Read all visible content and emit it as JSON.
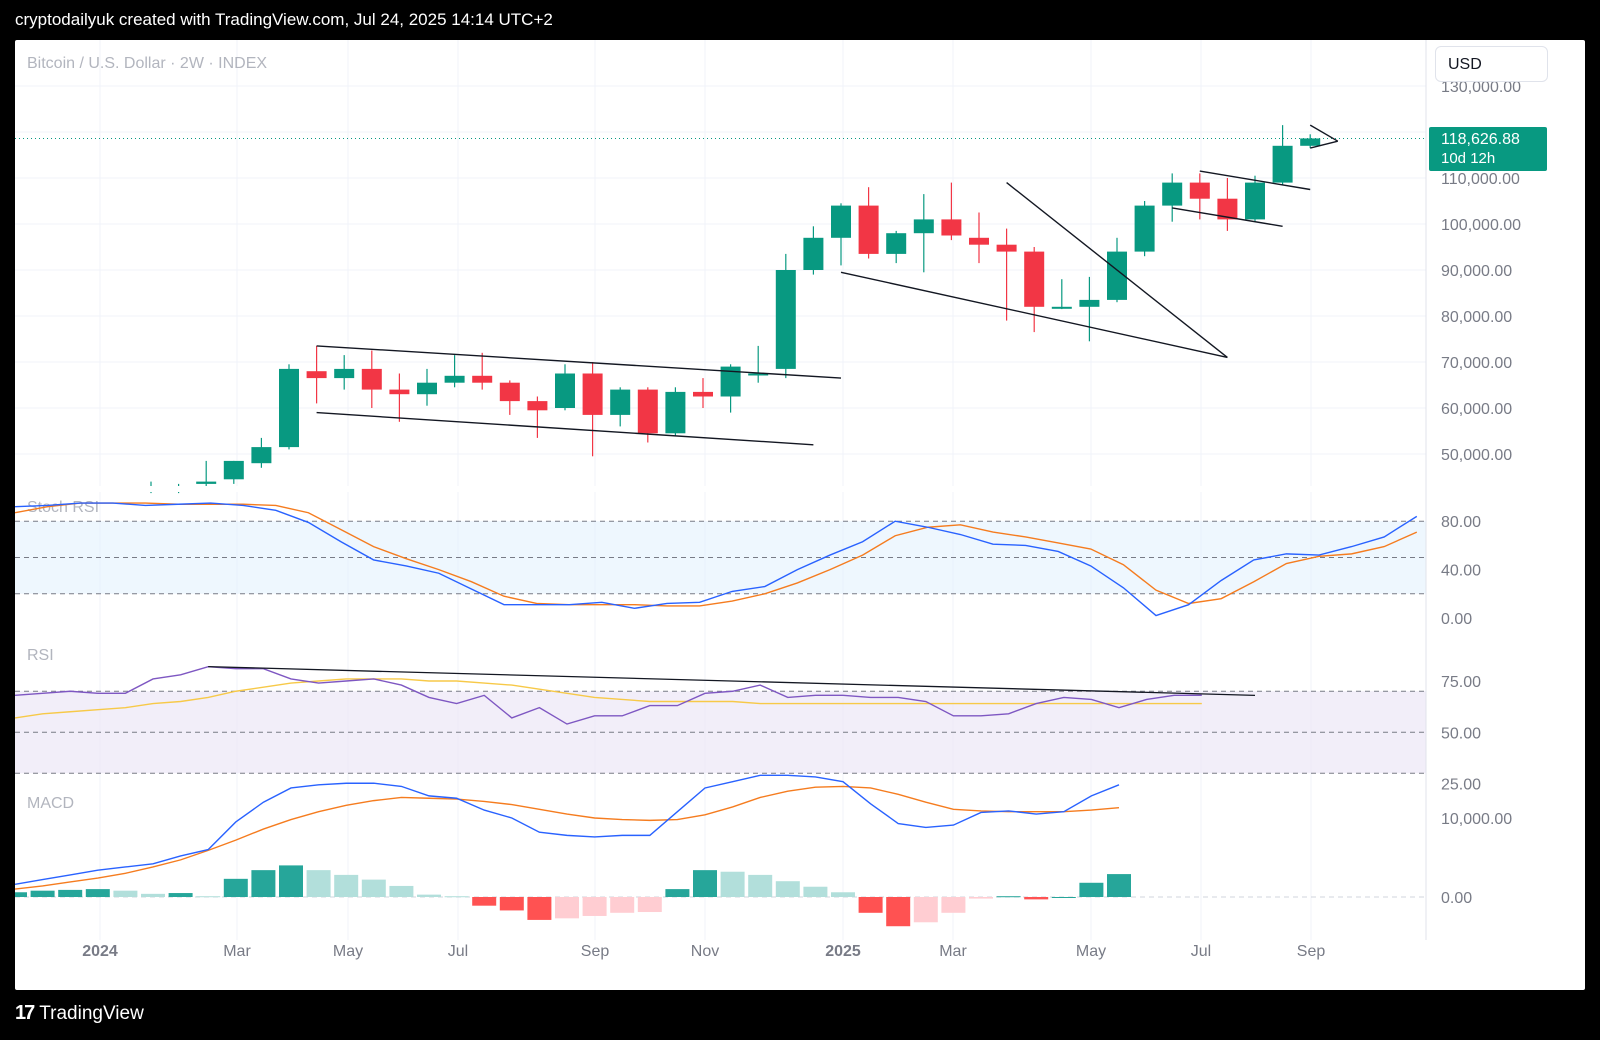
{
  "header": {
    "title": "cryptodailyuk created with TradingView.com, Jul 24, 2025 14:14 UTC+2"
  },
  "chart": {
    "symbol_label": "Bitcoin / U.S. Dollar · 2W · INDEX",
    "currency_button": "USD",
    "last_price": "118,626.88",
    "countdown": "10d 12h"
  },
  "footer": {
    "brand": "TradingView",
    "logo_mark": "17"
  },
  "chart_data": {
    "type": "candlestick",
    "price_axis": [
      "130,000.00",
      "110,000.00",
      "100,000.00",
      "90,000.00",
      "80,000.00",
      "70,000.00",
      "60,000.00",
      "50,000.00"
    ],
    "time_axis": [
      "2024",
      "Mar",
      "May",
      "Jul",
      "Sep",
      "Nov",
      "2025",
      "Mar",
      "May",
      "Jul",
      "Sep"
    ],
    "candles": [
      {
        "o": 42500,
        "h": 44000,
        "l": 41500,
        "c": 43000
      },
      {
        "o": 42500,
        "h": 43500,
        "l": 41500,
        "c": 42800
      },
      {
        "o": 43500,
        "h": 48500,
        "l": 42000,
        "c": 44000
      },
      {
        "o": 44500,
        "h": 48500,
        "l": 43500,
        "c": 48500
      },
      {
        "o": 48000,
        "h": 53500,
        "l": 47000,
        "c": 51500
      },
      {
        "o": 51500,
        "h": 69500,
        "l": 51000,
        "c": 68500
      },
      {
        "o": 68000,
        "h": 73500,
        "l": 61000,
        "c": 66500
      },
      {
        "o": 66500,
        "h": 71500,
        "l": 64000,
        "c": 68500
      },
      {
        "o": 68500,
        "h": 72500,
        "l": 60000,
        "c": 64000
      },
      {
        "o": 64000,
        "h": 67500,
        "l": 57000,
        "c": 63000
      },
      {
        "o": 63000,
        "h": 68500,
        "l": 60500,
        "c": 65500
      },
      {
        "o": 65500,
        "h": 71500,
        "l": 64500,
        "c": 67000
      },
      {
        "o": 67000,
        "h": 72000,
        "l": 64000,
        "c": 65500
      },
      {
        "o": 65500,
        "h": 66000,
        "l": 58500,
        "c": 61500
      },
      {
        "o": 61500,
        "h": 62500,
        "l": 53500,
        "c": 59500
      },
      {
        "o": 60000,
        "h": 69500,
        "l": 59500,
        "c": 67500
      },
      {
        "o": 67500,
        "h": 70000,
        "l": 49500,
        "c": 58500
      },
      {
        "o": 58500,
        "h": 64500,
        "l": 56000,
        "c": 64000
      },
      {
        "o": 64000,
        "h": 64500,
        "l": 52500,
        "c": 54500
      },
      {
        "o": 54500,
        "h": 64500,
        "l": 54000,
        "c": 63500
      },
      {
        "o": 63500,
        "h": 66500,
        "l": 60000,
        "c": 62500
      },
      {
        "o": 62500,
        "h": 69500,
        "l": 59000,
        "c": 69000
      },
      {
        "o": 67500,
        "h": 73500,
        "l": 65500,
        "c": 67500
      },
      {
        "o": 68500,
        "h": 93500,
        "l": 66500,
        "c": 90000
      },
      {
        "o": 90000,
        "h": 99500,
        "l": 89000,
        "c": 97000
      },
      {
        "o": 97000,
        "h": 104500,
        "l": 91000,
        "c": 104000
      },
      {
        "o": 104000,
        "h": 108000,
        "l": 92500,
        "c": 93500
      },
      {
        "o": 93500,
        "h": 98500,
        "l": 91500,
        "c": 98000
      },
      {
        "o": 98000,
        "h": 106500,
        "l": 89500,
        "c": 101000
      },
      {
        "o": 101000,
        "h": 109000,
        "l": 96500,
        "c": 97500
      },
      {
        "o": 97000,
        "h": 102500,
        "l": 91500,
        "c": 95500
      },
      {
        "o": 95500,
        "h": 99000,
        "l": 79000,
        "c": 94000
      },
      {
        "o": 94000,
        "h": 95000,
        "l": 76500,
        "c": 82000
      },
      {
        "o": 82000,
        "h": 88000,
        "l": 81500,
        "c": 82000
      },
      {
        "o": 82000,
        "h": 88500,
        "l": 74500,
        "c": 83500
      },
      {
        "o": 83500,
        "h": 97000,
        "l": 83000,
        "c": 94000
      },
      {
        "o": 94000,
        "h": 105000,
        "l": 93000,
        "c": 104000
      },
      {
        "o": 104000,
        "h": 111000,
        "l": 100500,
        "c": 109000
      },
      {
        "o": 109000,
        "h": 111000,
        "l": 101000,
        "c": 105500
      },
      {
        "o": 105500,
        "h": 110000,
        "l": 98500,
        "c": 101000
      },
      {
        "o": 101000,
        "h": 110500,
        "l": 100500,
        "c": 109000
      },
      {
        "o": 109000,
        "h": 121500,
        "l": 108500,
        "c": 117000
      },
      {
        "o": 117000,
        "h": 119500,
        "l": 116500,
        "c": 118600
      }
    ],
    "trendlines": [
      {
        "from": [
          6,
          73500
        ],
        "to": [
          25,
          66500
        ]
      },
      {
        "from": [
          6,
          59000
        ],
        "to": [
          24,
          52000
        ]
      },
      {
        "from": [
          25,
          89500
        ],
        "to": [
          39,
          71000
        ]
      },
      {
        "from": [
          31,
          109000
        ],
        "to": [
          39,
          71000
        ]
      },
      {
        "from": [
          38,
          111500
        ],
        "to": [
          42,
          107500
        ]
      },
      {
        "from": [
          37,
          103500
        ],
        "to": [
          41,
          99500
        ]
      },
      {
        "from": [
          42,
          121500
        ],
        "to": [
          43,
          118000
        ]
      },
      {
        "from": [
          42,
          116500
        ],
        "to": [
          43,
          118000
        ]
      }
    ],
    "stoch_rsi": {
      "label": "Stoch RSI",
      "axis": [
        "80.00",
        "40.00",
        "0.00"
      ],
      "k": [
        92,
        93,
        95,
        95,
        93,
        94,
        95,
        93,
        89,
        79,
        63,
        48,
        43,
        37,
        24,
        11,
        11,
        11,
        13,
        8,
        12,
        13,
        22,
        26,
        40,
        52,
        63,
        80,
        75,
        69,
        61,
        60,
        55,
        43,
        25,
        2,
        11,
        31,
        48,
        53,
        52,
        59,
        67,
        84
      ],
      "d": [
        87,
        92,
        95,
        95,
        95,
        94,
        94,
        94,
        93,
        87,
        73,
        59,
        49,
        40,
        30,
        18,
        12,
        11,
        11,
        11,
        10,
        10,
        14,
        20,
        29,
        40,
        52,
        68,
        75,
        77,
        71,
        67,
        62,
        57,
        44,
        23,
        12,
        16,
        30,
        45,
        51,
        53,
        59,
        71
      ]
    },
    "rsi": {
      "label": "RSI",
      "axis": [
        "75.00",
        "50.00",
        "25.00"
      ],
      "value": [
        68,
        69,
        70,
        69,
        69,
        76,
        78,
        82,
        81,
        81,
        76,
        74,
        75,
        76,
        73,
        67,
        64,
        68,
        57,
        62,
        54,
        58,
        58,
        63,
        63,
        69,
        70,
        73,
        67,
        68,
        68,
        67,
        67,
        65,
        58,
        58,
        59,
        64,
        67,
        66,
        62,
        66,
        68,
        68
      ],
      "ma": [
        57,
        59,
        60,
        61,
        62,
        64,
        65,
        67,
        70,
        72,
        74,
        75,
        76,
        76,
        76,
        75,
        75,
        74,
        73,
        71,
        69,
        67,
        66,
        65,
        65,
        65,
        65,
        64,
        64,
        64,
        64,
        64,
        64,
        64,
        64,
        64,
        64,
        64,
        64,
        64,
        64,
        64,
        64,
        64
      ]
    },
    "macd": {
      "label": "MACD",
      "axis": [
        "10,000.00",
        "0.00"
      ],
      "macd": [
        1600,
        2200,
        2800,
        3400,
        3800,
        4200,
        5200,
        6000,
        9500,
        12000,
        13800,
        14200,
        14400,
        14400,
        14000,
        12800,
        12500,
        11000,
        10000,
        8200,
        7800,
        7600,
        7800,
        7800,
        10800,
        13800,
        14600,
        15400,
        15400,
        15200,
        14600,
        11800,
        9300,
        8800,
        9100,
        10700,
        10900,
        10500,
        10800,
        12800,
        14200
      ],
      "signal": [
        1000,
        1400,
        1900,
        2400,
        3000,
        3800,
        4700,
        5900,
        7200,
        8600,
        9800,
        10800,
        11600,
        12200,
        12600,
        12500,
        12400,
        12100,
        11700,
        11100,
        10500,
        10000,
        9800,
        9700,
        9800,
        10400,
        11400,
        12600,
        13400,
        13900,
        14000,
        13800,
        13000,
        12000,
        11100,
        10900,
        10800,
        10800,
        10800,
        11000,
        11300
      ],
      "histogram": [
        600,
        800,
        900,
        1000,
        800,
        400,
        500,
        100,
        2300,
        3400,
        4000,
        3400,
        2800,
        2200,
        1400,
        300,
        100,
        -1100,
        -1700,
        -2900,
        -2700,
        -2400,
        -2000,
        -1900,
        1000,
        3400,
        3200,
        2800,
        2000,
        1300,
        600,
        -2000,
        -3700,
        -3200,
        -2000,
        -200,
        100,
        -300,
        0,
        1800,
        2900
      ]
    }
  }
}
